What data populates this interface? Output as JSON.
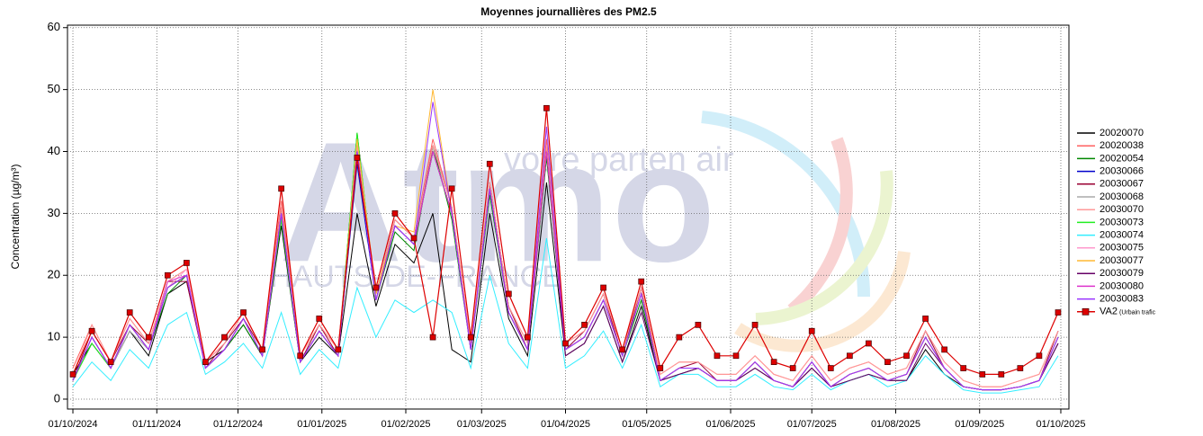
{
  "chart_data": {
    "type": "line",
    "title": "Moyennes journallières des PM2.5",
    "y_label": "Concentration (µg/m³)",
    "watermark": {
      "logo": "Atmo",
      "tagline": "votre parten air",
      "region": "HAUTS-DE-FRANCE"
    },
    "x": [
      "2024-10-01",
      "2024-10-08",
      "2024-10-15",
      "2024-10-22",
      "2024-10-29",
      "2024-11-05",
      "2024-11-12",
      "2024-11-19",
      "2024-11-26",
      "2024-12-03",
      "2024-12-10",
      "2024-12-17",
      "2024-12-24",
      "2024-12-31",
      "2025-01-07",
      "2025-01-14",
      "2025-01-21",
      "2025-01-28",
      "2025-02-04",
      "2025-02-11",
      "2025-02-18",
      "2025-02-25",
      "2025-03-04",
      "2025-03-11",
      "2025-03-18",
      "2025-03-25",
      "2025-04-01",
      "2025-04-08",
      "2025-04-15",
      "2025-04-22",
      "2025-04-29",
      "2025-05-06",
      "2025-05-13",
      "2025-05-20",
      "2025-05-27",
      "2025-06-03",
      "2025-06-10",
      "2025-06-17",
      "2025-06-24",
      "2025-07-01",
      "2025-07-08",
      "2025-07-15",
      "2025-07-22",
      "2025-07-29",
      "2025-08-05",
      "2025-08-12",
      "2025-08-19",
      "2025-08-26",
      "2025-09-02",
      "2025-09-09",
      "2025-09-16",
      "2025-09-23",
      "2025-09-30"
    ],
    "xlim": [
      "2024-09-29",
      "2025-10-04"
    ],
    "xticks": [
      {
        "value": "2024-10-01",
        "label": "01/10/2024"
      },
      {
        "value": "2024-11-01",
        "label": "01/11/2024"
      },
      {
        "value": "2024-12-01",
        "label": "01/12/2024"
      },
      {
        "value": "2025-01-01",
        "label": "01/01/2025"
      },
      {
        "value": "2025-02-01",
        "label": "01/02/2025"
      },
      {
        "value": "2025-03-01",
        "label": "01/03/2025"
      },
      {
        "value": "2025-04-01",
        "label": "01/04/2025"
      },
      {
        "value": "2025-05-01",
        "label": "01/05/2025"
      },
      {
        "value": "2025-06-01",
        "label": "01/06/2025"
      },
      {
        "value": "2025-07-01",
        "label": "01/07/2025"
      },
      {
        "value": "2025-08-01",
        "label": "01/08/2025"
      },
      {
        "value": "2025-09-01",
        "label": "01/09/2025"
      },
      {
        "value": "2025-10-01",
        "label": "01/10/2025"
      }
    ],
    "ylim": [
      -1.6,
      60.4
    ],
    "yticks": [
      0,
      10,
      20,
      30,
      40,
      50,
      60
    ],
    "grid": true,
    "legend": "right",
    "series": [
      {
        "name": "20020070",
        "color": "#000000",
        "values": [
          4,
          9,
          5,
          11,
          7,
          17,
          19,
          6,
          8,
          12,
          7,
          28,
          6,
          10,
          7,
          30,
          15,
          25,
          22,
          30,
          8,
          6,
          30,
          13,
          7,
          35,
          7,
          9,
          15,
          6,
          15,
          3,
          4,
          5,
          3,
          3,
          5,
          3,
          2,
          5,
          2,
          3,
          4,
          3,
          3,
          8,
          4,
          2,
          1.5,
          1.5,
          2,
          3,
          9
        ]
      },
      {
        "name": "20020038",
        "color": "#ff6060",
        "values": [
          5,
          12,
          6,
          13,
          9,
          19,
          21,
          6,
          9,
          14,
          8,
          32,
          7,
          12,
          8,
          41,
          17,
          29,
          26,
          42,
          31,
          9,
          35,
          15,
          9,
          42,
          9,
          11,
          17,
          8,
          18,
          4,
          6,
          6,
          4,
          4,
          7,
          4,
          3,
          7,
          3,
          5,
          6,
          4,
          5,
          11,
          6,
          3,
          2,
          2,
          3,
          4,
          11
        ]
      },
      {
        "name": "20020054",
        "color": "#008800",
        "values": [
          3,
          9,
          5,
          12,
          8,
          17,
          20,
          5,
          8,
          12,
          7,
          29,
          6,
          11,
          7,
          43,
          16,
          27,
          24,
          41,
          29,
          8,
          33,
          14,
          8,
          39,
          8,
          10,
          16,
          7,
          16,
          3,
          5,
          5,
          3,
          3,
          6,
          3,
          2,
          6,
          2,
          4,
          5,
          3,
          4,
          10,
          5,
          2,
          1.5,
          1.5,
          2,
          3,
          10
        ]
      },
      {
        "name": "20030066",
        "color": "#0000cc",
        "values": [
          3,
          10,
          5,
          12,
          8,
          18,
          20,
          5,
          8,
          13,
          7,
          30,
          6,
          11,
          7,
          38,
          16,
          28,
          25,
          40,
          30,
          8,
          34,
          14,
          8,
          40,
          8,
          10,
          16,
          7,
          17,
          3,
          5,
          5,
          3,
          3,
          6,
          3,
          2,
          6,
          2,
          4,
          5,
          3,
          4,
          10,
          5,
          2,
          1.5,
          1.5,
          2,
          3,
          10
        ]
      },
      {
        "name": "20030067",
        "color": "#990033",
        "values": [
          3,
          11,
          6,
          12,
          9,
          19,
          19,
          5,
          9,
          13,
          8,
          31,
          6,
          12,
          7,
          39,
          17,
          29,
          26,
          41,
          31,
          8,
          35,
          15,
          8,
          41,
          8,
          11,
          17,
          7,
          18,
          3,
          5,
          6,
          3,
          3,
          6,
          3,
          2,
          6,
          2,
          4,
          5,
          3,
          4,
          11,
          5,
          2,
          1.5,
          1.5,
          2,
          3,
          11
        ]
      },
      {
        "name": "20030068",
        "color": "#aaaaaa",
        "values": [
          3,
          10,
          5,
          11,
          8,
          18,
          20,
          5,
          8,
          13,
          7,
          30,
          6,
          11,
          7,
          40,
          16,
          28,
          25,
          40,
          30,
          8,
          34,
          14,
          8,
          40,
          8,
          10,
          16,
          7,
          17,
          3,
          5,
          5,
          3,
          3,
          6,
          3,
          2,
          6,
          2,
          4,
          5,
          3,
          4,
          10,
          5,
          2,
          1.5,
          1.5,
          2,
          3,
          10
        ]
      },
      {
        "name": "20030070",
        "color": "#ff9999",
        "values": [
          4,
          12,
          6,
          13,
          9,
          19,
          21,
          6,
          9,
          14,
          8,
          31,
          7,
          12,
          8,
          41,
          17,
          29,
          26,
          41,
          31,
          9,
          35,
          15,
          9,
          41,
          9,
          11,
          17,
          8,
          18,
          4,
          6,
          6,
          4,
          4,
          7,
          4,
          3,
          7,
          3,
          5,
          6,
          4,
          5,
          11,
          6,
          3,
          2,
          2,
          3,
          4,
          11
        ]
      },
      {
        "name": "20030073",
        "color": "#22ee22",
        "values": [
          3,
          9,
          5,
          12,
          8,
          18,
          20,
          5,
          8,
          13,
          7,
          29,
          6,
          11,
          7,
          43,
          16,
          28,
          25,
          40,
          30,
          8,
          34,
          14,
          8,
          40,
          8,
          10,
          16,
          7,
          17,
          3,
          5,
          5,
          3,
          3,
          6,
          3,
          2,
          6,
          2,
          4,
          5,
          3,
          4,
          10,
          5,
          2,
          1.5,
          1.5,
          2,
          3,
          10
        ]
      },
      {
        "name": "20030074",
        "color": "#33eeff",
        "values": [
          2,
          6,
          3,
          8,
          5,
          12,
          14,
          4,
          6,
          9,
          5,
          14,
          4,
          8,
          5,
          18,
          10,
          16,
          14,
          16,
          14,
          5,
          20,
          9,
          5,
          26,
          5,
          7,
          11,
          5,
          12,
          2,
          4,
          4,
          2,
          2,
          4,
          2,
          1.5,
          4,
          1.5,
          3,
          4,
          2,
          3,
          7,
          4,
          1.5,
          1,
          1,
          1.5,
          2,
          7
        ]
      },
      {
        "name": "20030075",
        "color": "#ff99cc",
        "values": [
          3,
          10,
          5,
          12,
          8,
          18,
          21,
          5,
          8,
          13,
          7,
          30,
          6,
          11,
          7,
          40,
          16,
          28,
          25,
          40,
          30,
          8,
          34,
          14,
          8,
          40,
          8,
          10,
          16,
          7,
          17,
          3,
          5,
          5,
          3,
          3,
          6,
          3,
          2,
          6,
          2,
          4,
          5,
          3,
          4,
          10,
          5,
          2,
          1.5,
          1.5,
          2,
          3,
          10
        ]
      },
      {
        "name": "20030077",
        "color": "#ffb833",
        "values": [
          3,
          10,
          5,
          12,
          8,
          18,
          20,
          5,
          8,
          13,
          7,
          30,
          6,
          11,
          7,
          42,
          17,
          28,
          27,
          50,
          30,
          8,
          34,
          14,
          8,
          40,
          8,
          10,
          16,
          7,
          17,
          3,
          5,
          5,
          3,
          3,
          6,
          3,
          2,
          6,
          2,
          4,
          5,
          3,
          4,
          10,
          5,
          2,
          1.5,
          1.5,
          2,
          3,
          10
        ]
      },
      {
        "name": "20030079",
        "color": "#660066",
        "values": [
          3,
          10,
          5,
          12,
          8,
          18,
          20,
          5,
          8,
          13,
          7,
          30,
          6,
          11,
          7,
          40,
          16,
          28,
          25,
          40,
          30,
          8,
          34,
          14,
          8,
          40,
          7,
          9,
          15,
          6,
          14,
          3,
          4,
          5,
          3,
          3,
          5,
          3,
          2,
          5,
          2,
          3,
          4,
          3,
          3,
          9,
          5,
          2,
          1.5,
          1.5,
          2,
          3,
          9
        ]
      },
      {
        "name": "20030080",
        "color": "#dd33cc",
        "values": [
          3,
          10,
          5,
          12,
          8,
          19,
          20,
          5,
          8,
          13,
          7,
          30,
          6,
          11,
          7,
          40,
          16,
          28,
          25,
          40,
          30,
          8,
          34,
          14,
          8,
          40,
          8,
          10,
          16,
          7,
          17,
          3,
          5,
          5,
          3,
          3,
          6,
          3,
          2,
          6,
          2,
          4,
          5,
          3,
          4,
          10,
          5,
          2,
          1.5,
          1.5,
          2,
          3,
          10
        ]
      },
      {
        "name": "20030083",
        "color": "#9933ff",
        "values": [
          3,
          10,
          5,
          12,
          8,
          18,
          20,
          5,
          8,
          13,
          7,
          30,
          6,
          11,
          7,
          40,
          16,
          28,
          25,
          48,
          30,
          8,
          34,
          14,
          8,
          44,
          8,
          10,
          16,
          7,
          17,
          3,
          5,
          5,
          3,
          3,
          6,
          3,
          2,
          6,
          2,
          4,
          5,
          3,
          4,
          10,
          5,
          2,
          1.5,
          1.5,
          2,
          3,
          10
        ]
      },
      {
        "name": "VA2",
        "station_type": "(Urbain trafic",
        "color": "#dd0000",
        "marker": "square",
        "values": [
          4,
          11,
          6,
          14,
          10,
          20,
          22,
          6,
          10,
          14,
          8,
          34,
          7,
          13,
          8,
          39,
          18,
          30,
          26,
          10,
          34,
          10,
          38,
          17,
          10,
          47,
          9,
          12,
          18,
          8,
          19,
          5,
          10,
          12,
          7,
          7,
          12,
          6,
          5,
          11,
          5,
          7,
          9,
          6,
          7,
          13,
          8,
          5,
          4,
          4,
          5,
          7,
          14
        ]
      }
    ]
  }
}
